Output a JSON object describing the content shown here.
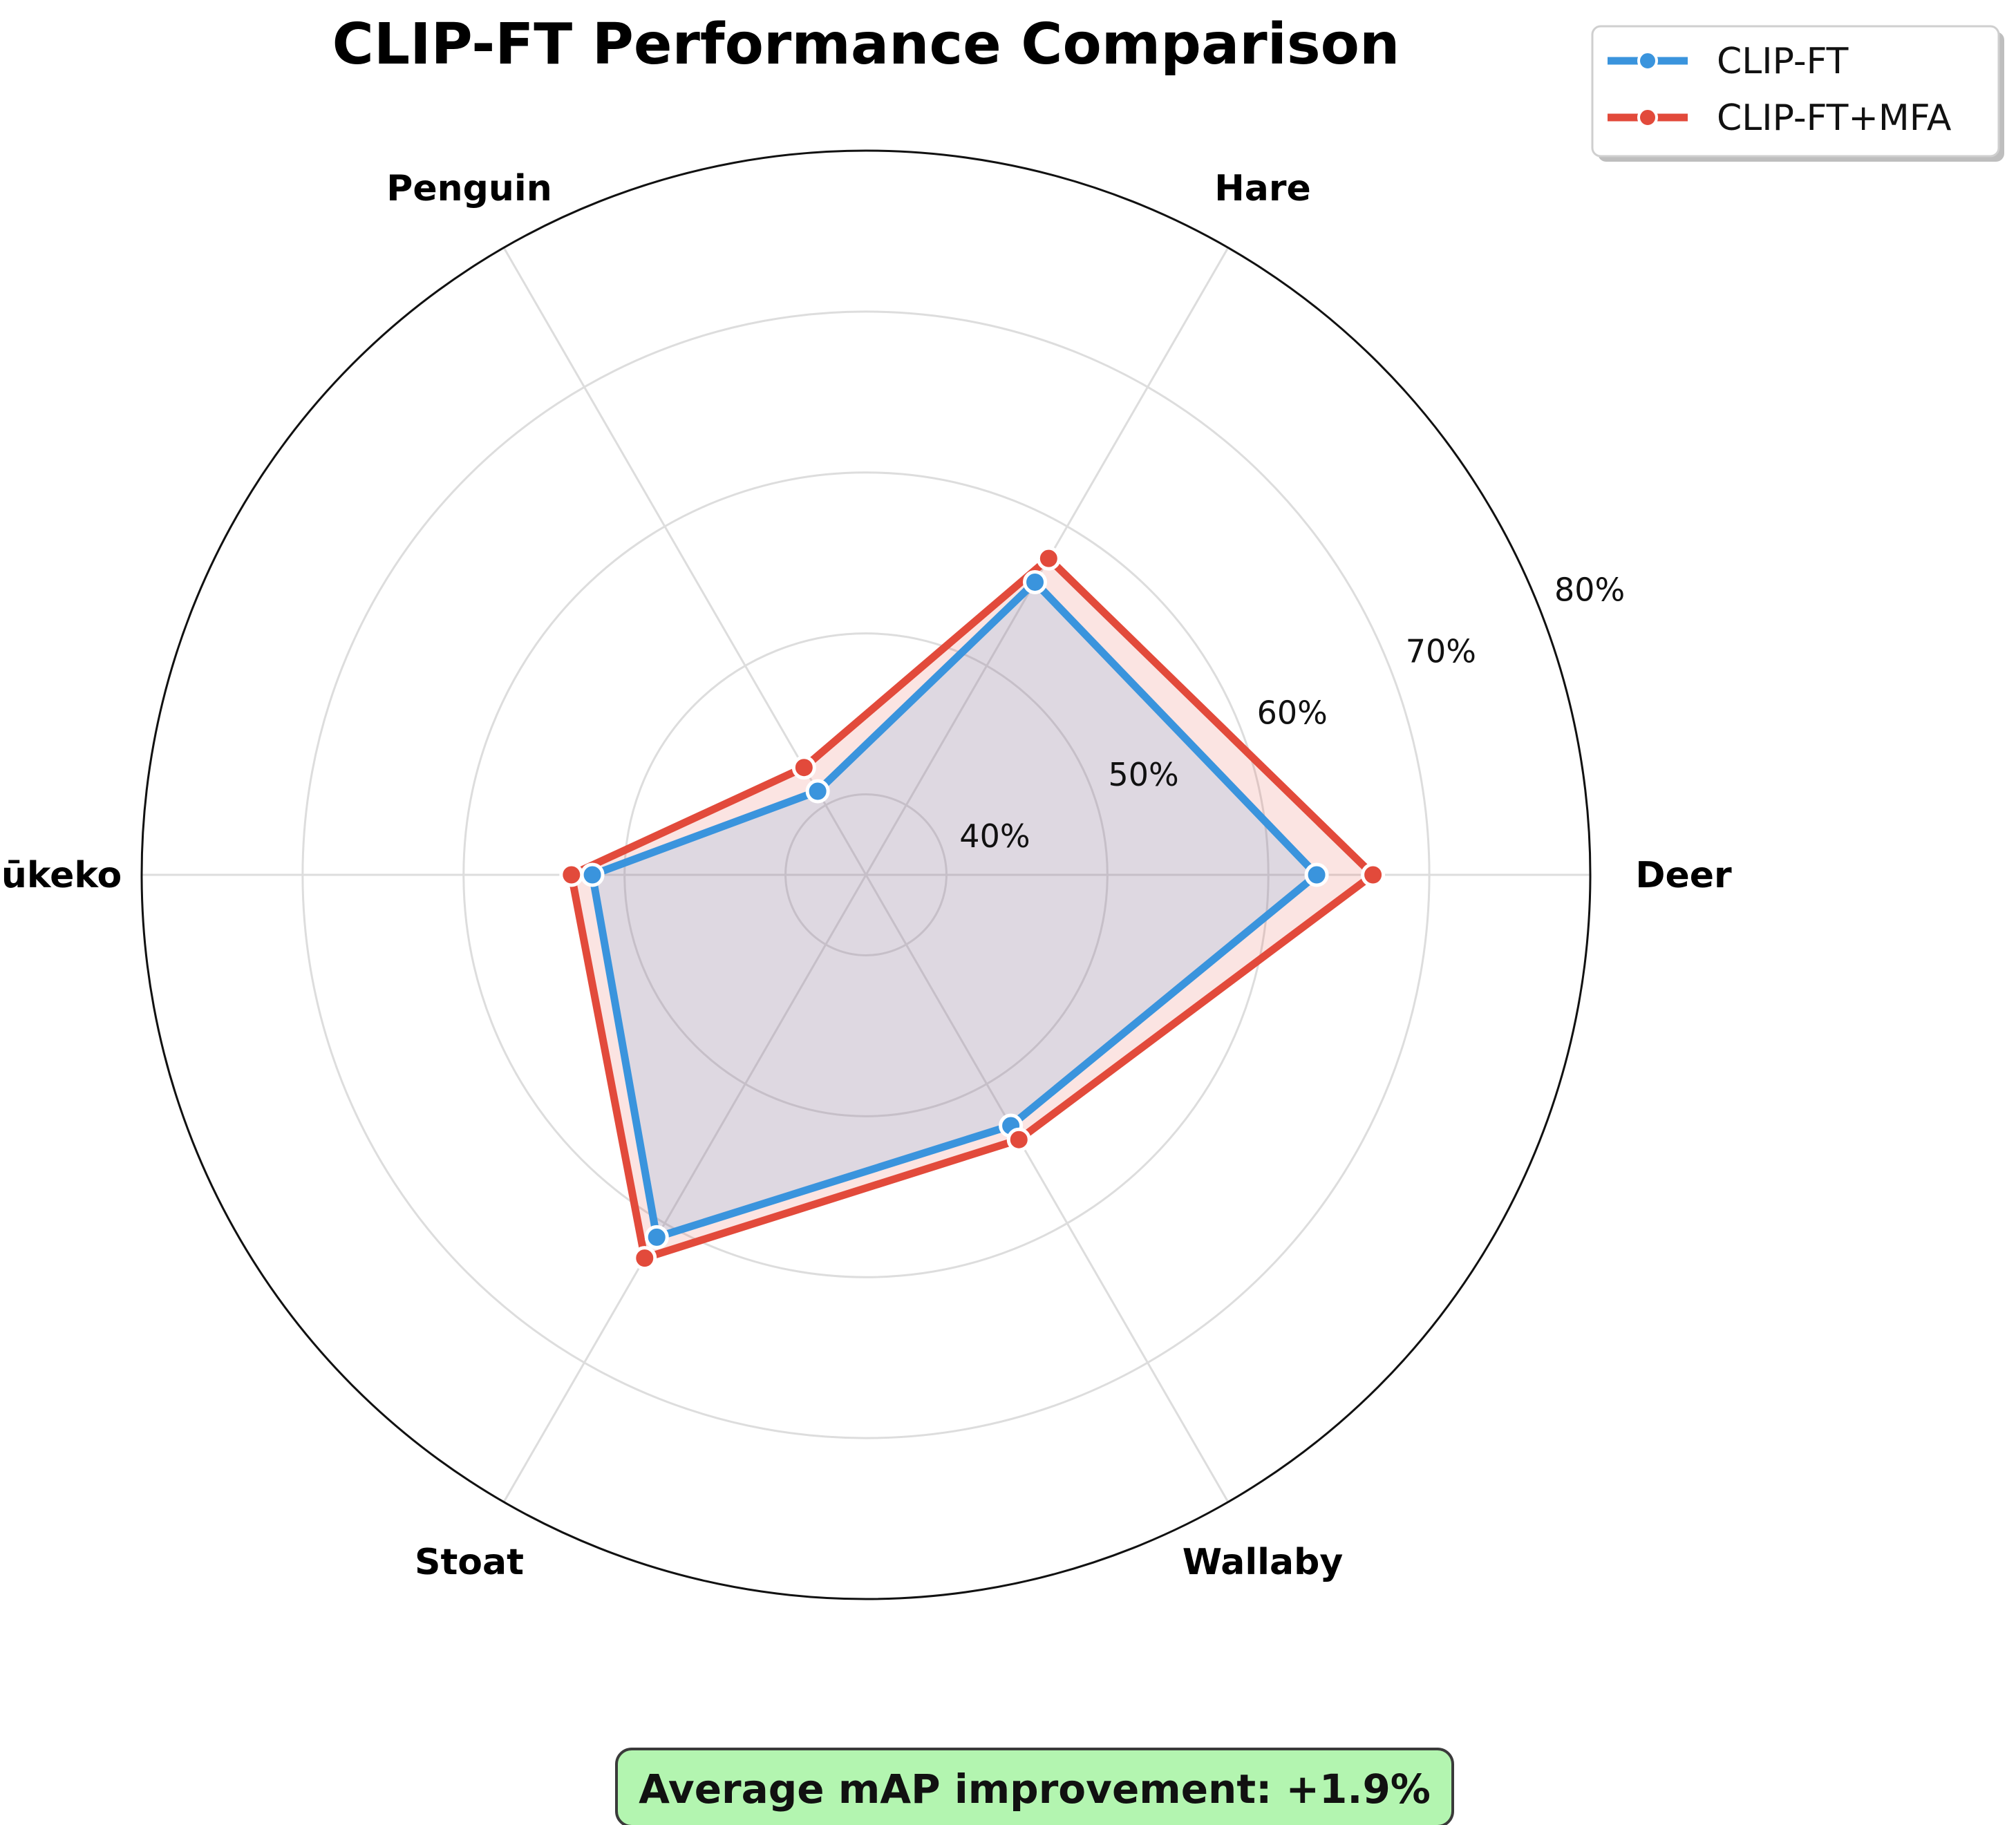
{
  "chart_data": {
    "type": "radar",
    "title": "CLIP-FT Performance Comparison",
    "categories": [
      "Deer",
      "Hare",
      "Penguin",
      "Pūkeko",
      "Stoat",
      "Wallaby"
    ],
    "series": [
      {
        "name": "CLIP-FT",
        "values": [
          63.0,
          56.0,
          41.0,
          52.0,
          61.0,
          53.0
        ],
        "color": "#3a94dd"
      },
      {
        "name": "CLIP-FT+MFA",
        "values": [
          66.5,
          57.7,
          42.7,
          53.3,
          62.5,
          54.0
        ],
        "color": "#e24a3b"
      }
    ],
    "rlim": [
      35,
      80
    ],
    "rticks": [
      40,
      50,
      60,
      70,
      80
    ],
    "rtick_labels": [
      "40%",
      "50%",
      "60%",
      "70%",
      "80%"
    ],
    "grid": true,
    "legend_position": "upper right",
    "annotation": "Average mAP improvement: +1.9%",
    "annotation_color": "#b3f5b0"
  }
}
